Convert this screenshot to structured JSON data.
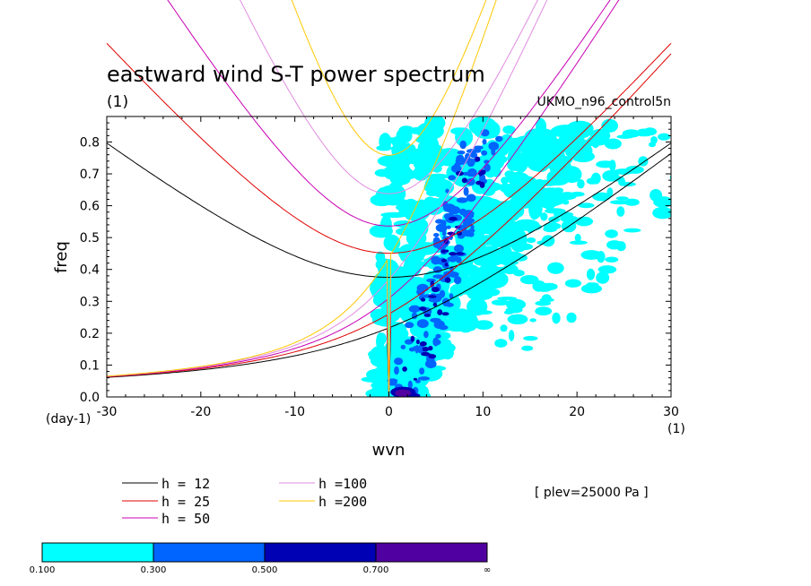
{
  "chart_data": {
    "type": "contour",
    "title": "eastward wind S-T power spectrum",
    "subtitle_left": "(1)",
    "subtitle_right": "UKMO_n96_control5n",
    "xlabel": "wvn",
    "ylabel": "freq",
    "x_unit_label": "(1)",
    "y_unit_label": "(day-1)",
    "xlim": [
      -30,
      30
    ],
    "ylim": [
      0,
      0.88
    ],
    "x_ticks": [
      -30,
      -20,
      -10,
      0,
      10,
      20,
      30
    ],
    "y_ticks": [
      0.0,
      0.1,
      0.2,
      0.3,
      0.4,
      0.5,
      0.6,
      0.7,
      0.8
    ],
    "x_tick_labels": [
      "-30",
      "-20",
      "-10",
      "0",
      "10",
      "20",
      "30"
    ],
    "y_tick_labels": [
      "0.0",
      "0.1",
      "0.2",
      "0.3",
      "0.4",
      "0.5",
      "0.6",
      "0.7",
      "0.8"
    ],
    "annotation": "[ plev=25000 Pa ]",
    "dispersion_curves": [
      {
        "label": "h = 12",
        "h": 12,
        "color": "#000000"
      },
      {
        "label": "h = 25",
        "h": 25,
        "color": "#e00000"
      },
      {
        "label": "h = 50",
        "h": 50,
        "color": "#c800b4"
      },
      {
        "label": "h =100",
        "h": 100,
        "color": "#e08ce0"
      },
      {
        "label": "h =200",
        "h": 200,
        "color": "#ffc800"
      }
    ],
    "contour_levels": [
      {
        "label": "0.100",
        "color": "#00ffff"
      },
      {
        "label": "0.300",
        "color": "#0064ff"
      },
      {
        "label": "0.500",
        "color": "#0000b4"
      },
      {
        "label": "0.700",
        "color": "#5000a0"
      },
      {
        "label": "∞",
        "color": null
      }
    ]
  }
}
